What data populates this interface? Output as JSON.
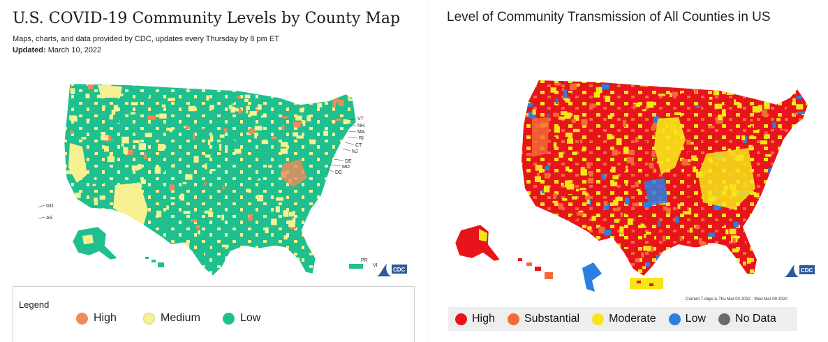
{
  "left_panel": {
    "title": "U.S. COVID-19 Community Levels by County Map",
    "subtitle": "Maps, charts, and data provided by CDC, updates every Thursday by 8 pm ET",
    "updated_label": "Updated:",
    "updated_value": "March 10, 2022",
    "territory_labels": [
      "GU",
      "AS",
      "PR",
      "VI"
    ],
    "state_labels": [
      "VT",
      "NH",
      "MA",
      "RI",
      "CT",
      "NJ",
      "DE",
      "MD",
      "DC"
    ],
    "logo_text": "CDC",
    "legend": {
      "title": "Legend",
      "items": [
        {
          "label": "High",
          "color": "#f08a5a"
        },
        {
          "label": "Medium",
          "color": "#f7f191"
        },
        {
          "label": "Low",
          "color": "#1fbf8f"
        }
      ]
    },
    "colors": {
      "high": "#f08a5a",
      "medium": "#f7f191",
      "low": "#1fbf8f"
    }
  },
  "right_panel": {
    "title": "Level of Community Transmission of All Counties in US",
    "note": "Current 7-days is Thu Mar 03 2022 - Wed Mar 09 2022",
    "logo_text": "CDC",
    "legend": {
      "items": [
        {
          "label": "High",
          "color": "#e8141b"
        },
        {
          "label": "Substantial",
          "color": "#f26b38"
        },
        {
          "label": "Moderate",
          "color": "#f7e51a"
        },
        {
          "label": "Low",
          "color": "#2b7fe0"
        },
        {
          "label": "No Data",
          "color": "#6b6b6b"
        }
      ]
    },
    "colors": {
      "high": "#e8141b",
      "substantial": "#f26b38",
      "moderate": "#f7e51a",
      "low": "#2b7fe0"
    }
  }
}
